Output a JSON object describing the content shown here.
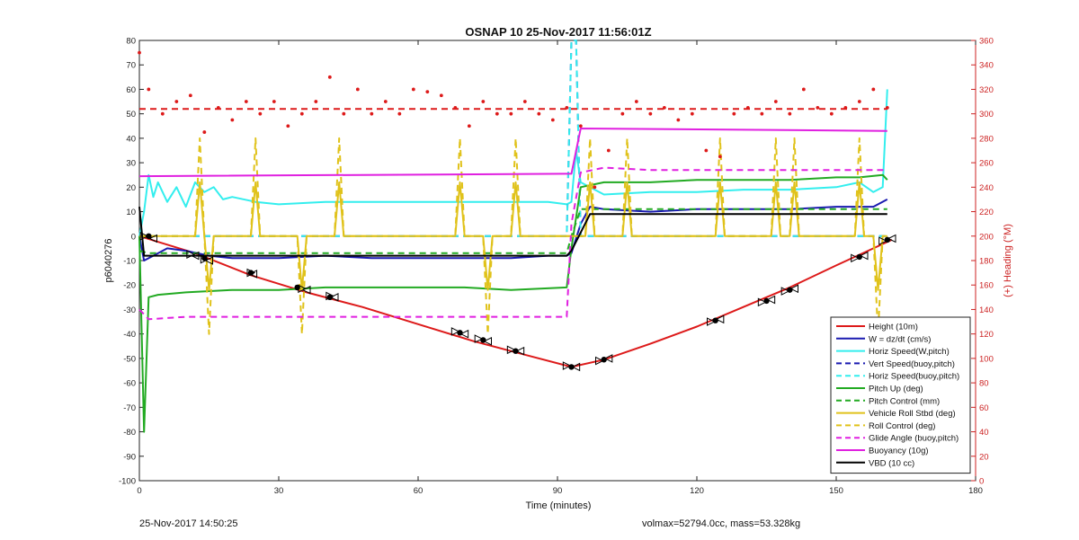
{
  "footer": {
    "left": "25-Nov-2017 14:50:25",
    "right": "volmax=52794.0cc, mass=53.328kg"
  },
  "chart_data": {
    "type": "line",
    "title": "OSNAP 10 25-Nov-2017 11:56:01Z",
    "xlabel": "Time (minutes)",
    "ylabel": "p6040276",
    "y2label": "(+) Heading (°M)",
    "xlim": [
      0,
      180
    ],
    "ylim": [
      -100,
      80
    ],
    "y2lim": [
      0,
      360
    ],
    "xticks": [
      0,
      30,
      60,
      90,
      120,
      150,
      180
    ],
    "yticks": [
      80,
      70,
      60,
      50,
      40,
      30,
      20,
      10,
      0,
      -10,
      -20,
      -30,
      -40,
      -50,
      -60,
      -70,
      -80,
      -90,
      -100
    ],
    "y2ticks": [
      360,
      340,
      320,
      300,
      280,
      260,
      240,
      220,
      200,
      180,
      160,
      140,
      120,
      100,
      80,
      60,
      40,
      20,
      0
    ],
    "grid": false,
    "legend_position": "bottom-right",
    "colors": {
      "red": "#dd1a1a",
      "blue": "#1a1ab0",
      "cyan": "#33eeee",
      "green": "#22aa22",
      "yellow": "#e0c21a",
      "magenta": "#e020e0",
      "black": "#000000",
      "right_axis": "#cc2222"
    },
    "series": [
      {
        "name": "Height (10m)",
        "color": "#dd1a1a",
        "style": "solid",
        "axis": "left",
        "x": [
          0,
          12,
          24,
          36,
          48,
          60,
          72,
          84,
          93,
          100,
          110,
          120,
          130,
          140,
          150,
          162
        ],
        "y": [
          0,
          -7,
          -16,
          -23,
          -29,
          -36,
          -43,
          -49,
          -53.5,
          -50.5,
          -44,
          -37,
          -29,
          -21,
          -12,
          -1.5
        ]
      },
      {
        "name": "W = dz/dt (cm/s)",
        "color": "#1a1ab0",
        "style": "solid",
        "axis": "left",
        "x": [
          0,
          1,
          3,
          6,
          10,
          15,
          20,
          30,
          40,
          50,
          60,
          70,
          80,
          88,
          92,
          93,
          95,
          97,
          100,
          110,
          120,
          130,
          140,
          150,
          158,
          161
        ],
        "y": [
          0,
          -10,
          -8,
          -5,
          -6,
          -8,
          -9,
          -9,
          -8,
          -9,
          -9,
          -9,
          -9,
          -8,
          -8,
          -7,
          5,
          12,
          11,
          10,
          11,
          11,
          11,
          12,
          12,
          15
        ]
      },
      {
        "name": "Horiz Speed(W,pitch)",
        "color": "#33eeee",
        "style": "solid",
        "axis": "left",
        "x": [
          0,
          1,
          2,
          3,
          4,
          6,
          8,
          10,
          12,
          14,
          16,
          18,
          20,
          25,
          30,
          40,
          50,
          60,
          70,
          80,
          88,
          92,
          93,
          94,
          95,
          100,
          110,
          120,
          130,
          140,
          150,
          155,
          158,
          160,
          161
        ],
        "y": [
          0,
          10,
          25,
          16,
          22,
          14,
          20,
          12,
          22,
          18,
          20,
          15,
          16,
          14,
          13,
          14,
          14,
          14,
          14,
          14,
          14,
          13,
          14,
          35,
          22,
          17,
          18,
          18,
          19,
          19,
          20,
          22,
          18,
          20,
          60
        ]
      },
      {
        "name": "Vert Speed(buoy,pitch)",
        "color": "#1a1ab0",
        "style": "dashed",
        "axis": "left",
        "x": [
          0,
          92,
          93,
          94,
          95,
          161
        ],
        "y": [
          0,
          0,
          80,
          80,
          0,
          0
        ]
      },
      {
        "name": "Horiz Speed(buoy,pitch)",
        "color": "#33eeee",
        "style": "dashed",
        "axis": "left",
        "x": [
          0,
          92,
          93,
          94,
          95,
          161
        ],
        "y": [
          0,
          0,
          80,
          80,
          0,
          0
        ]
      },
      {
        "name": "Pitch Up (deg)",
        "color": "#22aa22",
        "style": "solid",
        "axis": "left",
        "x": [
          0,
          1,
          2,
          4,
          10,
          20,
          30,
          40,
          50,
          60,
          70,
          80,
          92,
          93,
          95,
          100,
          110,
          120,
          130,
          140,
          150,
          155,
          160,
          161
        ],
        "y": [
          0,
          -80,
          -25,
          -24,
          -23,
          -22,
          -22,
          -21,
          -21,
          -21,
          -21,
          -22,
          -21,
          -5,
          20,
          22,
          22,
          23,
          23,
          23,
          24,
          24,
          25,
          23
        ]
      },
      {
        "name": "Pitch Control (mm)",
        "color": "#22aa22",
        "style": "dashed",
        "axis": "left",
        "x": [
          0,
          2,
          92,
          93,
          95,
          161
        ],
        "y": [
          -6,
          -7,
          -7,
          0,
          11,
          11
        ]
      },
      {
        "name": "Vehicle Roll Stbd (deg)",
        "color": "#e0c21a",
        "style": "solid",
        "axis": "left",
        "x": [
          0,
          3,
          10,
          12,
          13,
          14,
          15,
          16,
          24,
          25,
          26,
          34,
          35,
          36,
          42,
          43,
          44,
          68,
          69,
          70,
          74,
          75,
          76,
          80,
          81,
          82,
          92,
          93,
          96,
          97,
          98,
          104,
          105,
          106,
          124,
          125,
          126,
          136,
          137,
          138,
          140,
          141,
          142,
          154,
          155,
          156,
          158,
          159,
          160,
          161
        ],
        "y": [
          0,
          0,
          0,
          0,
          22,
          0,
          -22,
          0,
          0,
          22,
          0,
          0,
          -22,
          0,
          0,
          22,
          0,
          0,
          22,
          0,
          0,
          -22,
          0,
          0,
          22,
          0,
          0,
          0,
          0,
          22,
          0,
          0,
          22,
          0,
          0,
          22,
          0,
          0,
          22,
          0,
          0,
          22,
          0,
          0,
          22,
          0,
          0,
          -22,
          0,
          0
        ]
      },
      {
        "name": "Roll Control (deg)",
        "color": "#e0c21a",
        "style": "dashed",
        "axis": "left",
        "x": [
          0,
          3,
          10,
          12,
          13,
          14,
          15,
          16,
          24,
          25,
          26,
          34,
          35,
          36,
          42,
          43,
          44,
          68,
          69,
          70,
          74,
          75,
          76,
          80,
          81,
          82,
          92,
          93,
          96,
          97,
          98,
          104,
          105,
          106,
          124,
          125,
          126,
          136,
          137,
          138,
          140,
          141,
          142,
          154,
          155,
          156,
          158,
          159,
          160,
          161
        ],
        "y": [
          0,
          0,
          0,
          0,
          40,
          0,
          -40,
          0,
          0,
          40,
          0,
          0,
          -40,
          0,
          0,
          40,
          0,
          0,
          40,
          0,
          0,
          -40,
          0,
          0,
          40,
          0,
          0,
          0,
          0,
          40,
          0,
          0,
          40,
          0,
          0,
          40,
          0,
          0,
          40,
          0,
          0,
          40,
          0,
          0,
          40,
          0,
          0,
          -40,
          0,
          0
        ]
      },
      {
        "name": "Glide Angle (buoy,pitch)",
        "color": "#e020e0",
        "style": "dashed",
        "axis": "left",
        "x": [
          0,
          2,
          10,
          20,
          30,
          40,
          50,
          60,
          70,
          80,
          92,
          93,
          95,
          100,
          110,
          120,
          130,
          140,
          150,
          161
        ],
        "y": [
          -30,
          -34,
          -33,
          -33,
          -33,
          -33,
          -33,
          -33,
          -33,
          -33,
          -33,
          5,
          26,
          28,
          27,
          27,
          27,
          27,
          27,
          27
        ]
      },
      {
        "name": "Buoyancy (10g)",
        "color": "#e020e0",
        "style": "solid",
        "axis": "left",
        "x": [
          0,
          92,
          93,
          95,
          161
        ],
        "y": [
          24.5,
          25.5,
          25.5,
          44,
          43
        ]
      },
      {
        "name": "VBD (10 cc)",
        "color": "#000000",
        "style": "solid",
        "axis": "left",
        "x": [
          0,
          1,
          92,
          93,
          97,
          161
        ],
        "y": [
          12,
          -8,
          -8,
          -6,
          9,
          9
        ]
      },
      {
        "name": "",
        "color": "#dd1a1a",
        "style": "dots",
        "axis": "right",
        "x": [
          0,
          2,
          5,
          8,
          11,
          14,
          17,
          20,
          23,
          26,
          29,
          32,
          35,
          38,
          41,
          44,
          47,
          50,
          53,
          56,
          59,
          62,
          65,
          68,
          71,
          74,
          77,
          80,
          83,
          86,
          89,
          92,
          95,
          98,
          101,
          104,
          107,
          110,
          113,
          116,
          119,
          122,
          125,
          128,
          131,
          134,
          137,
          140,
          143,
          146,
          149,
          152,
          155,
          158,
          161
        ],
        "y": [
          350,
          320,
          300,
          310,
          315,
          285,
          305,
          295,
          310,
          300,
          310,
          290,
          300,
          310,
          330,
          300,
          320,
          300,
          310,
          300,
          320,
          318,
          315,
          305,
          290,
          310,
          300,
          300,
          310,
          300,
          295,
          305,
          290,
          240,
          270,
          300,
          310,
          300,
          305,
          295,
          300,
          270,
          265,
          300,
          305,
          300,
          310,
          300,
          320,
          305,
          300,
          305,
          310,
          320,
          305
        ]
      },
      {
        "name": "",
        "color": "#dd1a1a",
        "style": "dashed",
        "axis": "right",
        "x": [
          0,
          161
        ],
        "y": [
          304,
          304
        ]
      }
    ],
    "markers": {
      "filled_dots": [
        {
          "x": 2,
          "y": 0
        },
        {
          "x": 14,
          "y": -9
        },
        {
          "x": 24,
          "y": -15
        },
        {
          "x": 34,
          "y": -21
        },
        {
          "x": 41,
          "y": -25
        },
        {
          "x": 69,
          "y": -39.5
        },
        {
          "x": 74,
          "y": -42.5
        },
        {
          "x": 81,
          "y": -47
        },
        {
          "x": 93,
          "y": -53.5
        },
        {
          "x": 100,
          "y": -50.5
        },
        {
          "x": 124,
          "y": -34.5
        },
        {
          "x": 135,
          "y": -26.5
        },
        {
          "x": 140,
          "y": -22
        },
        {
          "x": 155,
          "y": -8.5
        },
        {
          "x": 161,
          "y": -1.5
        }
      ],
      "left_triangles": [
        {
          "x": 3,
          "y": -1
        },
        {
          "x": 12,
          "y": -8
        },
        {
          "x": 15,
          "y": -10
        },
        {
          "x": 24.5,
          "y": -15.5
        },
        {
          "x": 36,
          "y": -22
        },
        {
          "x": 42,
          "y": -25
        },
        {
          "x": 70,
          "y": -40
        },
        {
          "x": 75,
          "y": -43
        },
        {
          "x": 82,
          "y": -47
        },
        {
          "x": 94,
          "y": -53.5
        },
        {
          "x": 101,
          "y": -50
        },
        {
          "x": 125,
          "y": -34
        },
        {
          "x": 136,
          "y": -26
        },
        {
          "x": 141,
          "y": -21.5
        },
        {
          "x": 156,
          "y": -8
        },
        {
          "x": 162,
          "y": -1
        }
      ],
      "right_triangles": [
        {
          "x": 1,
          "y": 0
        },
        {
          "x": 11,
          "y": -7.5
        },
        {
          "x": 14,
          "y": -9.5
        },
        {
          "x": 24,
          "y": -15
        },
        {
          "x": 35,
          "y": -21.5
        },
        {
          "x": 41,
          "y": -24.5
        },
        {
          "x": 68,
          "y": -39
        },
        {
          "x": 73,
          "y": -42
        },
        {
          "x": 80,
          "y": -46.5
        },
        {
          "x": 92,
          "y": -53
        },
        {
          "x": 99,
          "y": -51
        },
        {
          "x": 123,
          "y": -35
        },
        {
          "x": 134,
          "y": -27
        },
        {
          "x": 139,
          "y": -22.5
        },
        {
          "x": 154,
          "y": -9
        },
        {
          "x": 160,
          "y": -2
        }
      ]
    }
  }
}
